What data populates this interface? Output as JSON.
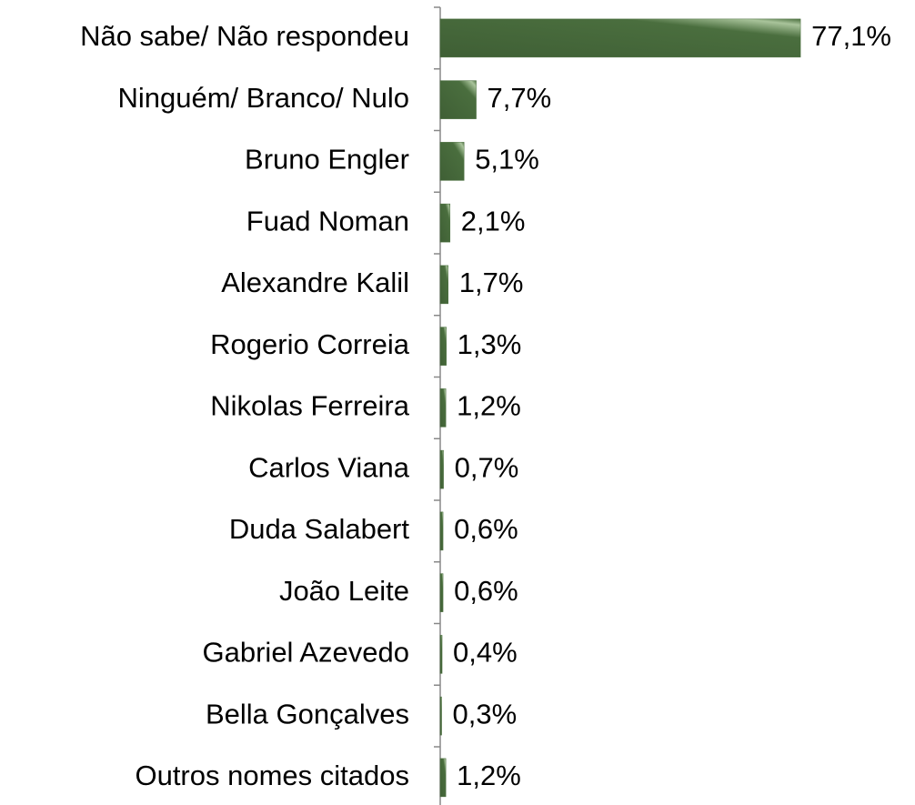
{
  "chart_data": {
    "type": "hbar",
    "categories": [
      "Não sabe/ Não respondeu",
      "Ninguém/ Branco/ Nulo",
      "Bruno Engler",
      "Fuad Noman",
      "Alexandre Kalil",
      "Rogerio Correia",
      "Nikolas Ferreira",
      "Carlos Viana",
      "Duda Salabert",
      "João Leite",
      "Gabriel Azevedo",
      "Bella Gonçalves",
      "Outros nomes citados"
    ],
    "values": [
      77.1,
      7.7,
      5.1,
      2.1,
      1.7,
      1.3,
      1.2,
      0.7,
      0.6,
      0.6,
      0.4,
      0.3,
      1.2
    ],
    "value_labels": [
      "77,1%",
      "7,7%",
      "5,1%",
      "2,1%",
      "1,7%",
      "1,3%",
      "1,2%",
      "0,7%",
      "0,6%",
      "0,6%",
      "0,4%",
      "0,3%",
      "1,2%"
    ],
    "color": "#4a6e3e",
    "xlim": [
      0,
      80
    ]
  }
}
